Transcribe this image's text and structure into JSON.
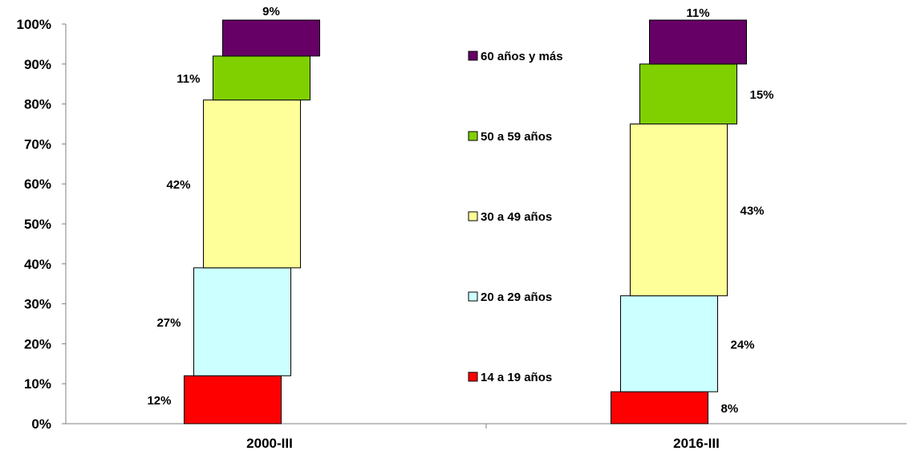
{
  "chart_data": {
    "type": "bar",
    "stacked": true,
    "categories": [
      "2000-III",
      "2016-III"
    ],
    "series": [
      {
        "name": "14 a 19 años",
        "values": [
          12,
          8
        ],
        "labels": [
          "12%",
          "8%"
        ],
        "color": "#ff0000"
      },
      {
        "name": "20 a 29 años",
        "values": [
          27,
          24
        ],
        "labels": [
          "27%",
          "24%"
        ],
        "color": "#ccffff"
      },
      {
        "name": "30 a 49 años",
        "values": [
          42,
          43
        ],
        "labels": [
          "42%",
          "43%"
        ],
        "color": "#ffff99"
      },
      {
        "name": "50 a 59 años",
        "values": [
          11,
          15
        ],
        "labels": [
          "11%",
          "15%"
        ],
        "color": "#80d000"
      },
      {
        "name": "60 años y más",
        "values": [
          9,
          11
        ],
        "labels": [
          "9%",
          "11%"
        ],
        "color": "#660066"
      }
    ],
    "yticks": [
      "0%",
      "10%",
      "20%",
      "30%",
      "40%",
      "50%",
      "60%",
      "70%",
      "80%",
      "90%",
      "100%"
    ],
    "ylim": [
      0,
      100
    ],
    "title": "",
    "xlabel": "",
    "ylabel": "",
    "legend_position": "center",
    "grid": false,
    "style": "3d-offset-bars"
  }
}
